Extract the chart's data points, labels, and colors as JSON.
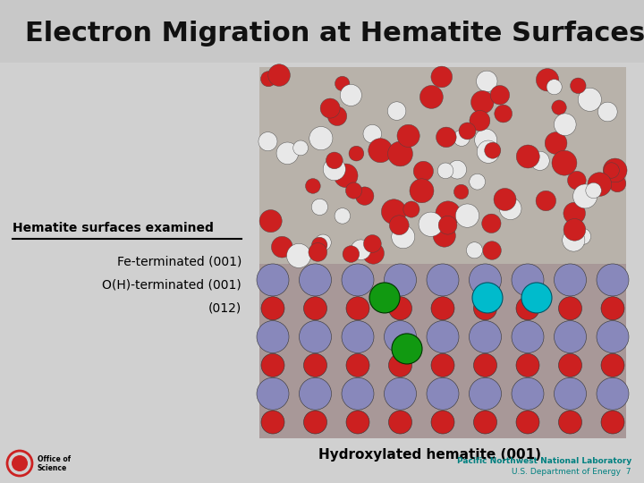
{
  "title": "Electron Migration at Hematite Surfaces",
  "title_fontsize": 22,
  "bg_color": "#d0d0d0",
  "left_text_header": "Hematite surfaces examined",
  "left_text_lines": [
    "Fe-terminated (001)",
    "O(H)-terminated (001)",
    "(012)"
  ],
  "caption": "Hydroxylated hematite (001)",
  "footer_left": "Pacific Northwest National Laboratory",
  "footer_right": "U.S. Department of Energy  7",
  "teal_color": "#009999",
  "blue_color": "#1a3a99",
  "footer_color": "#008080",
  "header_color": "#111111"
}
